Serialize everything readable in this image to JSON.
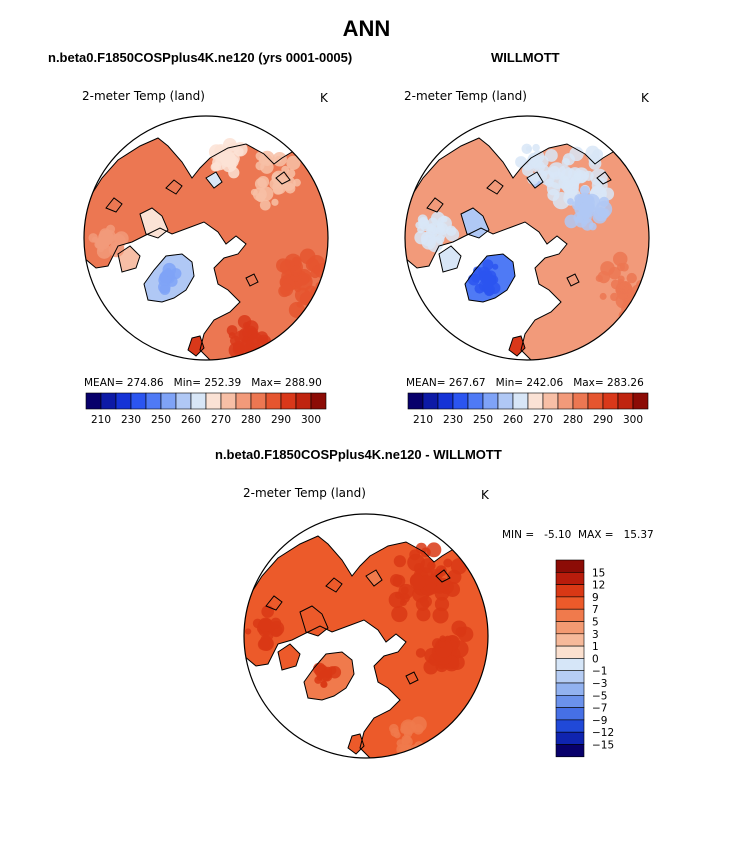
{
  "chart_data": [
    {
      "type": "heatmap",
      "projection": "north polar stereographic",
      "title": "n.beta0.F1850COSPplus4K.ne120 (yrs 0001-0005)",
      "variable": "2-meter Temp (land)",
      "units": "K",
      "stats": {
        "mean_label": "MEAN=",
        "mean": "274.86",
        "min_label": "Min=",
        "min": "252.39",
        "max_label": "Max=",
        "max": "288.90"
      },
      "colorbar": {
        "orientation": "horizontal",
        "ticks": [
          "210",
          "230",
          "250",
          "260",
          "270",
          "280",
          "290",
          "300"
        ]
      }
    },
    {
      "type": "heatmap",
      "projection": "north polar stereographic",
      "title": "WILLMOTT",
      "variable": "2-meter Temp (land)",
      "units": "K",
      "stats": {
        "mean_label": "MEAN=",
        "mean": "267.67",
        "min_label": "Min=",
        "min": "242.06",
        "max_label": "Max=",
        "max": "283.26"
      },
      "colorbar": {
        "orientation": "horizontal",
        "ticks": [
          "210",
          "230",
          "250",
          "260",
          "270",
          "280",
          "290",
          "300"
        ]
      }
    },
    {
      "type": "heatmap",
      "projection": "north polar stereographic",
      "title": "n.beta0.F1850COSPplus4K.ne120 - WILLMOTT",
      "variable": "2-meter Temp (land)",
      "units": "K",
      "stats": {
        "min_label": "MIN =",
        "min": "-5.10",
        "max_label": "MAX =",
        "max": "15.37"
      },
      "colorbar": {
        "orientation": "vertical",
        "ticks": [
          "15",
          "12",
          "9",
          "7",
          "5",
          "3",
          "1",
          "0",
          "−1",
          "−3",
          "−5",
          "−7",
          "−9",
          "−12",
          "−15"
        ]
      }
    }
  ],
  "page_title": "ANN",
  "colors": {
    "abs_scale": [
      "#08006b",
      "#0d1aa6",
      "#1533d6",
      "#2b55f0",
      "#4f7af5",
      "#7fa3f7",
      "#b0c8f5",
      "#d8e6f7",
      "#fbe2d5",
      "#f7bfa6",
      "#f29a7a",
      "#ec7752",
      "#e5552f",
      "#d9381a",
      "#c0240f",
      "#8c0c06"
    ],
    "diff_scale": [
      "#8c0c06",
      "#b81c0c",
      "#d93815",
      "#ec5a2a",
      "#f07a4c",
      "#f39a72",
      "#f6b99a",
      "#fbe0cf",
      "#d6e6f8",
      "#b6cdf4",
      "#92b2f0",
      "#6b92ec",
      "#4670e6",
      "#2049d8",
      "#0f24b0",
      "#08006b"
    ]
  }
}
